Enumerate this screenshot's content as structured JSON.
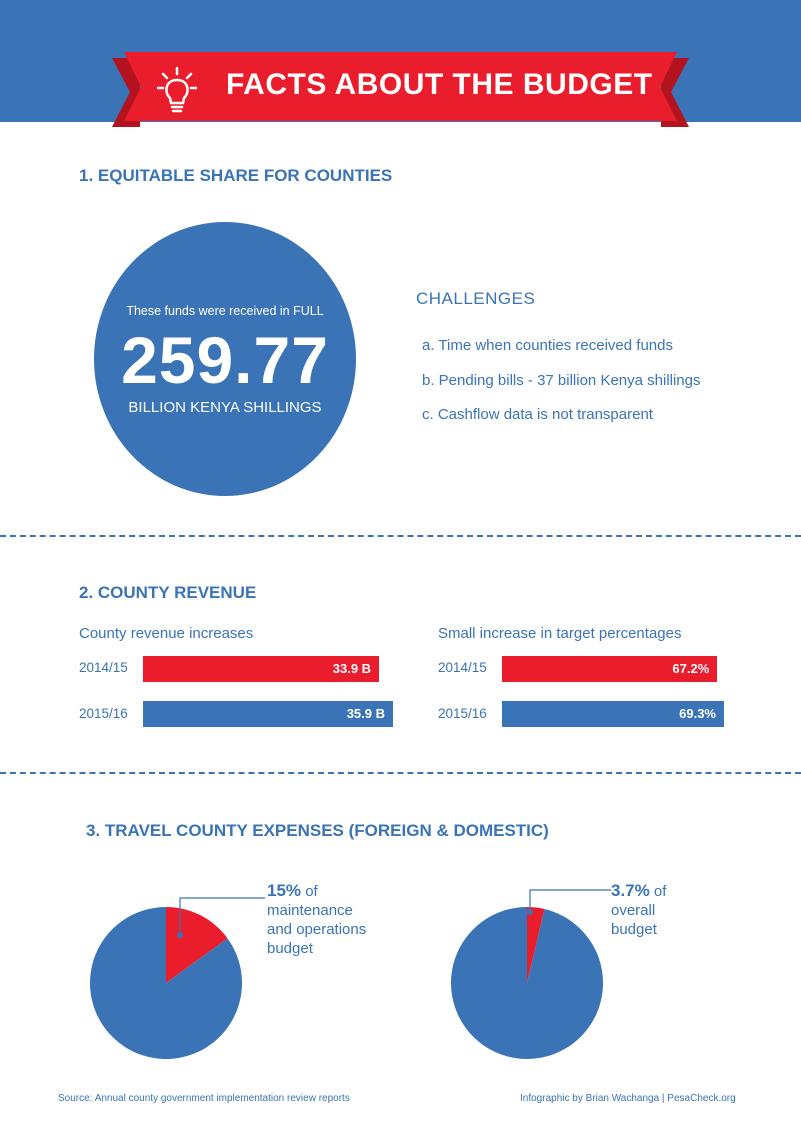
{
  "header": {
    "title": "FACTS ABOUT THE BUDGET",
    "icon": "lightbulb-icon"
  },
  "colors": {
    "blue": "#3a74b6",
    "red": "#ea1d2c"
  },
  "section1": {
    "title": "1. EQUITABLE SHARE FOR COUNTIES",
    "caption": "These funds were received in FULL",
    "number": "259.77",
    "unit": "BILLION KENYA SHILLINGS",
    "challenges_title": "CHALLENGES",
    "challenges": [
      "a. Time when counties received funds",
      "b. Pending bills - 37 billion Kenya shillings",
      "c. Cashflow data is not transparent"
    ]
  },
  "section2": {
    "title": "2. COUNTY REVENUE"
  },
  "section3": {
    "title": "3. TRAVEL COUNTY EXPENSES (FOREIGN & DOMESTIC)"
  },
  "chart_data": [
    {
      "type": "bar",
      "title": "County revenue increases",
      "categories": [
        "2014/15",
        "2015/16"
      ],
      "values": [
        33.9,
        35.9
      ],
      "labels": [
        "33.9 B",
        "35.9 B"
      ],
      "colors": [
        "#ea1d2c",
        "#3a74b6"
      ]
    },
    {
      "type": "bar",
      "title": "Small increase in target percentages",
      "categories": [
        "2014/15",
        "2015/16"
      ],
      "values": [
        67.2,
        69.3
      ],
      "labels": [
        "67.2%",
        "69.3%"
      ],
      "colors": [
        "#ea1d2c",
        "#3a74b6"
      ]
    },
    {
      "type": "pie",
      "values": [
        15,
        85
      ],
      "highlight_percent": "15%",
      "highlight_text": [
        "of",
        "maintenance",
        "and operations",
        "budget"
      ],
      "colors": [
        "#ea1d2c",
        "#3a74b6"
      ]
    },
    {
      "type": "pie",
      "values": [
        3.7,
        96.3
      ],
      "highlight_percent": "3.7%",
      "highlight_text": [
        "of",
        "overall",
        "budget"
      ],
      "colors": [
        "#ea1d2c",
        "#3a74b6"
      ]
    }
  ],
  "footer": {
    "source": "Source: Annual county government implementation review reports",
    "credit": "Infographic by Brian Wachanga | PesaCheck.org"
  }
}
